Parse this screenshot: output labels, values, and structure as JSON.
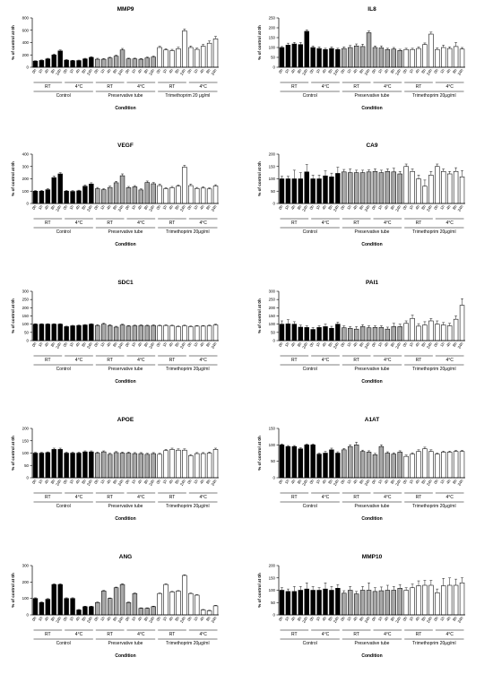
{
  "chart_data": [
    {
      "type": "bar",
      "title": "MMP9",
      "ylabel": "% of control at 0h",
      "xlabel": "Condition",
      "ylim": [
        0,
        800
      ],
      "yticks": [
        0,
        200,
        400,
        600,
        800
      ],
      "times": [
        "0h",
        "1h",
        "4h",
        "8h",
        "24h"
      ],
      "groups": [
        {
          "name": "Control",
          "sub": [
            "RT",
            "4°C"
          ]
        },
        {
          "name": "Preservative tube",
          "sub": [
            "RT",
            "4°C"
          ]
        },
        {
          "name": "Trimethoprim 20 μg/ml",
          "sub": [
            "RT",
            "4°C"
          ]
        }
      ],
      "values": [
        100,
        110,
        135,
        200,
        265,
        115,
        105,
        108,
        135,
        160,
        130,
        130,
        150,
        180,
        280,
        135,
        135,
        130,
        150,
        165,
        320,
        280,
        270,
        300,
        590,
        320,
        290,
        340,
        390,
        460
      ],
      "errors": [
        5,
        8,
        10,
        15,
        15,
        10,
        8,
        8,
        10,
        12,
        15,
        12,
        12,
        15,
        25,
        12,
        12,
        12,
        15,
        15,
        20,
        20,
        20,
        25,
        30,
        25,
        20,
        30,
        35,
        40
      ]
    },
    {
      "type": "bar",
      "title": "IL8",
      "ylabel": "% of control at 0h",
      "xlabel": "Condition",
      "ylim": [
        0,
        250
      ],
      "yticks": [
        0,
        50,
        100,
        150,
        200,
        250
      ],
      "times": [
        "0h",
        "1h",
        "4h",
        "8h",
        "24h"
      ],
      "groups": [
        {
          "name": "Control",
          "sub": [
            "RT",
            "4°C"
          ]
        },
        {
          "name": "Preservative tube",
          "sub": [
            "RT",
            "4°C"
          ]
        },
        {
          "name": "Trimethoprim 20μg/ml",
          "sub": [
            "RT",
            "4°C"
          ]
        }
      ],
      "values": [
        100,
        112,
        118,
        115,
        182,
        100,
        95,
        90,
        95,
        90,
        95,
        100,
        108,
        105,
        175,
        100,
        98,
        90,
        92,
        85,
        90,
        90,
        95,
        115,
        168,
        90,
        100,
        95,
        105,
        92
      ],
      "errors": [
        5,
        10,
        8,
        10,
        8,
        8,
        8,
        6,
        8,
        6,
        8,
        10,
        10,
        12,
        8,
        8,
        10,
        6,
        8,
        6,
        6,
        6,
        8,
        8,
        10,
        8,
        12,
        8,
        20,
        8
      ]
    },
    {
      "type": "bar",
      "title": "VEGF",
      "ylabel": "% of control at 0h",
      "xlabel": "Condition",
      "ylim": [
        0,
        400
      ],
      "yticks": [
        0,
        100,
        200,
        300,
        400
      ],
      "times": [
        "0h",
        "1h",
        "4h",
        "8h",
        "24h"
      ],
      "groups": [
        {
          "name": "Control",
          "sub": [
            "RT",
            "4°C"
          ]
        },
        {
          "name": "Preservative tube",
          "sub": [
            "RT",
            "4°C"
          ]
        },
        {
          "name": "Trimethoprim 20μg/ml",
          "sub": [
            "RT",
            "4°C"
          ]
        }
      ],
      "values": [
        100,
        100,
        112,
        210,
        240,
        100,
        98,
        102,
        140,
        158,
        120,
        112,
        130,
        168,
        225,
        128,
        135,
        110,
        170,
        160,
        145,
        120,
        128,
        140,
        295,
        145,
        122,
        125,
        118,
        142
      ],
      "errors": [
        5,
        6,
        8,
        12,
        10,
        6,
        6,
        6,
        10,
        10,
        10,
        8,
        10,
        12,
        15,
        10,
        10,
        8,
        12,
        10,
        12,
        8,
        10,
        10,
        15,
        12,
        8,
        10,
        8,
        10
      ]
    },
    {
      "type": "bar",
      "title": "CA9",
      "ylabel": "% of control at 0h",
      "xlabel": "Condition",
      "ylim": [
        0,
        200
      ],
      "yticks": [
        0,
        50,
        100,
        150,
        200
      ],
      "times": [
        "0h",
        "1h",
        "4h",
        "8h",
        "24h"
      ],
      "groups": [
        {
          "name": "Control",
          "sub": [
            "RT",
            "4°C"
          ]
        },
        {
          "name": "Preservative tube",
          "sub": [
            "RT",
            "4°C"
          ]
        },
        {
          "name": "Trimethoprim 20μg/ml",
          "sub": [
            "RT",
            "4°C"
          ]
        }
      ],
      "values": [
        100,
        100,
        100,
        100,
        128,
        100,
        100,
        112,
        108,
        122,
        128,
        125,
        125,
        125,
        128,
        130,
        125,
        130,
        128,
        120,
        150,
        130,
        100,
        70,
        115,
        150,
        130,
        120,
        130,
        108
      ],
      "errors": [
        10,
        10,
        35,
        25,
        30,
        15,
        15,
        20,
        15,
        25,
        10,
        15,
        10,
        10,
        8,
        10,
        10,
        10,
        15,
        10,
        10,
        10,
        15,
        25,
        15,
        10,
        10,
        10,
        15,
        25
      ]
    },
    {
      "type": "bar",
      "title": "SDC1",
      "ylabel": "% of control at 0h",
      "xlabel": "Condition",
      "ylim": [
        0,
        300
      ],
      "yticks": [
        0,
        50,
        100,
        150,
        200,
        250,
        300
      ],
      "times": [
        "0h",
        "1h",
        "4h",
        "8h",
        "24h"
      ],
      "groups": [
        {
          "name": "Control",
          "sub": [
            "RT",
            "4°C"
          ]
        },
        {
          "name": "Preservative tube",
          "sub": [
            "RT",
            "4°C"
          ]
        },
        {
          "name": "Trimethoprim 20μg/ml",
          "sub": [
            "RT",
            "4°C"
          ]
        }
      ],
      "values": [
        100,
        100,
        100,
        100,
        100,
        85,
        90,
        92,
        95,
        100,
        92,
        100,
        92,
        82,
        95,
        88,
        90,
        92,
        90,
        92,
        90,
        92,
        90,
        85,
        90,
        85,
        88,
        88,
        90,
        95
      ],
      "errors": [
        3,
        3,
        3,
        3,
        3,
        3,
        3,
        3,
        3,
        3,
        5,
        6,
        5,
        5,
        5,
        4,
        4,
        4,
        4,
        4,
        4,
        4,
        4,
        4,
        4,
        4,
        4,
        4,
        4,
        5
      ]
    },
    {
      "type": "bar",
      "title": "PAI1",
      "ylabel": "% of control at 0h",
      "xlabel": "Condition",
      "ylim": [
        0,
        300
      ],
      "yticks": [
        0,
        50,
        100,
        150,
        200,
        250,
        300
      ],
      "times": [
        "0h",
        "1h",
        "4h",
        "8h",
        "24h"
      ],
      "groups": [
        {
          "name": "Control",
          "sub": [
            "RT",
            "4°C"
          ]
        },
        {
          "name": "Preservative tube",
          "sub": [
            "RT",
            "4°C"
          ]
        },
        {
          "name": "Trimethoprim 20μg/ml",
          "sub": [
            "RT",
            "4°C"
          ]
        }
      ],
      "values": [
        100,
        102,
        100,
        82,
        80,
        68,
        80,
        85,
        75,
        100,
        78,
        75,
        70,
        85,
        78,
        80,
        80,
        70,
        85,
        85,
        105,
        135,
        88,
        95,
        120,
        100,
        95,
        90,
        130,
        215
      ],
      "errors": [
        20,
        25,
        15,
        12,
        10,
        12,
        10,
        15,
        12,
        12,
        12,
        10,
        15,
        12,
        12,
        10,
        10,
        12,
        20,
        15,
        15,
        20,
        15,
        20,
        15,
        20,
        15,
        15,
        20,
        40
      ]
    },
    {
      "type": "bar",
      "title": "APOE",
      "ylabel": "% of control at 0h",
      "xlabel": "Condition",
      "ylim": [
        0,
        200
      ],
      "yticks": [
        0,
        50,
        100,
        150,
        200
      ],
      "times": [
        "0h",
        "1h",
        "4h",
        "8h",
        "24h"
      ],
      "groups": [
        {
          "name": "Control",
          "sub": [
            "RT",
            "4°C"
          ]
        },
        {
          "name": "Preservative tube",
          "sub": [
            "RT",
            "4°C"
          ]
        },
        {
          "name": "Trimethoprim 20μg/ml",
          "sub": [
            "RT",
            "4°C"
          ]
        }
      ],
      "values": [
        100,
        100,
        102,
        115,
        115,
        100,
        100,
        100,
        105,
        105,
        100,
        105,
        95,
        102,
        100,
        100,
        98,
        98,
        95,
        98,
        95,
        110,
        115,
        112,
        112,
        90,
        98,
        98,
        100,
        115
      ],
      "errors": [
        3,
        3,
        3,
        5,
        5,
        4,
        4,
        4,
        4,
        4,
        4,
        4,
        4,
        4,
        4,
        4,
        4,
        4,
        4,
        4,
        4,
        5,
        5,
        5,
        5,
        4,
        4,
        4,
        4,
        5
      ]
    },
    {
      "type": "bar",
      "title": "A1AT",
      "ylabel": "% of control at 0h",
      "xlabel": "Condition",
      "ylim": [
        0,
        150
      ],
      "yticks": [
        0,
        50,
        100,
        150
      ],
      "times": [
        "0h",
        "1h",
        "4h",
        "8h",
        "24h"
      ],
      "groups": [
        {
          "name": "Control",
          "sub": [
            "RT",
            "4°C"
          ]
        },
        {
          "name": "Preservative tube",
          "sub": [
            "RT",
            "4°C"
          ]
        },
        {
          "name": "Trimethoprim 20μg/ml",
          "sub": [
            "RT",
            "4°C"
          ]
        }
      ],
      "values": [
        100,
        95,
        95,
        88,
        100,
        100,
        72,
        75,
        85,
        75,
        85,
        95,
        100,
        80,
        78,
        70,
        95,
        75,
        72,
        78,
        65,
        72,
        80,
        88,
        80,
        72,
        78,
        78,
        80,
        80
      ],
      "errors": [
        3,
        3,
        3,
        3,
        3,
        3,
        3,
        5,
        5,
        4,
        4,
        5,
        8,
        4,
        4,
        4,
        5,
        4,
        4,
        4,
        4,
        4,
        5,
        5,
        5,
        3,
        3,
        3,
        3,
        3
      ]
    },
    {
      "type": "bar",
      "title": "ANG",
      "ylabel": "% of control at 0h",
      "xlabel": "Condition",
      "ylim": [
        0,
        300
      ],
      "yticks": [
        0,
        100,
        200,
        300
      ],
      "times": [
        "0h",
        "1h",
        "4h",
        "8h",
        "24h"
      ],
      "groups": [
        {
          "name": "Control",
          "sub": [
            "RT",
            "4°C"
          ]
        },
        {
          "name": "Preservative tube",
          "sub": [
            "RT",
            "4°C"
          ]
        },
        {
          "name": "Trimethoprim 20μg/ml",
          "sub": [
            "RT",
            "4°C"
          ]
        }
      ],
      "values": [
        100,
        75,
        95,
        185,
        185,
        100,
        100,
        30,
        50,
        50,
        75,
        145,
        100,
        165,
        185,
        75,
        130,
        40,
        40,
        50,
        130,
        185,
        140,
        145,
        240,
        130,
        120,
        30,
        25,
        55
      ],
      "errors": [
        4,
        4,
        4,
        4,
        4,
        4,
        4,
        3,
        3,
        3,
        3,
        4,
        3,
        4,
        4,
        3,
        3,
        3,
        3,
        3,
        3,
        4,
        3,
        3,
        4,
        3,
        3,
        3,
        3,
        3
      ]
    },
    {
      "type": "bar",
      "title": "MMP10",
      "ylabel": "% of control at 0h",
      "xlabel": "Condition",
      "ylim": [
        0,
        200
      ],
      "yticks": [
        0,
        50,
        100,
        150,
        200
      ],
      "times": [
        "0h",
        "1h",
        "4h",
        "8h",
        "24h"
      ],
      "groups": [
        {
          "name": "Control",
          "sub": [
            "RT",
            "4°C"
          ]
        },
        {
          "name": "Preservative tube",
          "sub": [
            "RT",
            "4°C"
          ]
        },
        {
          "name": "Trimethoprim 20μg/ml",
          "sub": [
            "RT",
            "4°C"
          ]
        }
      ],
      "values": [
        100,
        95,
        95,
        100,
        105,
        100,
        100,
        105,
        100,
        108,
        88,
        100,
        85,
        100,
        100,
        95,
        98,
        100,
        100,
        108,
        100,
        110,
        118,
        120,
        120,
        90,
        118,
        120,
        120,
        130
      ],
      "errors": [
        10,
        10,
        20,
        15,
        25,
        15,
        10,
        25,
        15,
        15,
        10,
        15,
        10,
        15,
        30,
        15,
        15,
        20,
        15,
        15,
        10,
        15,
        20,
        20,
        20,
        15,
        30,
        30,
        25,
        20
      ]
    }
  ],
  "style": {
    "fills": [
      "#000000",
      "#a8a8a8",
      "#ffffff"
    ],
    "stroke": "#000000"
  }
}
